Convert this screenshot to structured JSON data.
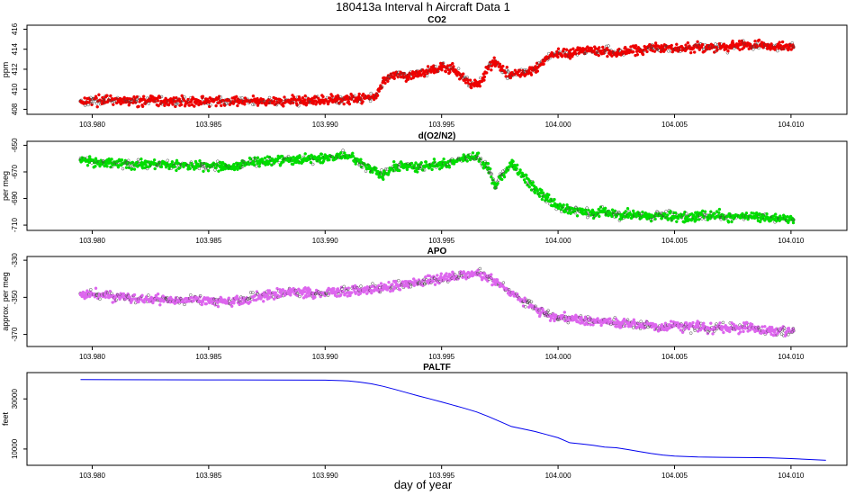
{
  "title": "180413a   Interval h Aircraft Data 1",
  "xlabel": "day of year",
  "chart_data": [
    {
      "type": "scatter",
      "title": "CO2",
      "ylabel": "ppm",
      "color": "#ee0000",
      "xlim": [
        103.9772,
        104.0124
      ],
      "ylim": [
        407.5,
        416.4
      ],
      "xticks": [
        "103.980",
        "103.985",
        "103.990",
        "103.995",
        "104.000",
        "104.005",
        "104.010"
      ],
      "yticks": [
        "408",
        "410",
        "412",
        "414",
        "416"
      ],
      "x": [
        103.9795,
        103.9805,
        103.9815,
        103.9825,
        103.9835,
        103.9845,
        103.9855,
        103.9865,
        103.9875,
        103.9885,
        103.9895,
        103.9905,
        103.9915,
        103.9922,
        103.9925,
        103.993,
        103.9935,
        103.994,
        103.9945,
        103.995,
        103.9955,
        103.996,
        103.9963,
        103.9966,
        103.997,
        103.9973,
        103.9976,
        103.998,
        103.9985,
        103.999,
        103.9995,
        104.0,
        104.0005,
        104.001,
        104.0015,
        104.002,
        104.0025,
        104.003,
        104.0035,
        104.004,
        104.0045,
        104.005,
        104.0055,
        104.006,
        104.0065,
        104.007,
        104.0075,
        104.008,
        104.0085,
        104.009,
        104.0095,
        104.0101
      ],
      "y": [
        408.8,
        408.9,
        408.8,
        408.9,
        408.8,
        408.8,
        408.8,
        408.8,
        408.8,
        408.8,
        408.8,
        409.0,
        409.1,
        409.4,
        410.8,
        411.6,
        411.3,
        411.6,
        411.9,
        412.2,
        412.0,
        411.0,
        410.5,
        410.6,
        412.2,
        412.8,
        411.9,
        411.4,
        411.6,
        412.0,
        413.2,
        413.6,
        413.6,
        413.8,
        413.8,
        413.9,
        413.6,
        413.9,
        414.0,
        414.1,
        414.2,
        414.0,
        414.1,
        414.2,
        414.1,
        414.2,
        414.3,
        414.4,
        414.4,
        414.4,
        414.2,
        414.2
      ]
    },
    {
      "type": "scatter",
      "title": "d(O2/N2)",
      "ylabel": "per meg",
      "color": "#00dd00",
      "xlim": [
        103.9772,
        104.0124
      ],
      "ylim": [
        -714,
        -647
      ],
      "xticks": [
        "103.980",
        "103.985",
        "103.990",
        "103.995",
        "104.000",
        "104.005",
        "104.010"
      ],
      "yticks": [
        "-650",
        "-670",
        "-690",
        "-710"
      ],
      "x": [
        103.9795,
        103.9805,
        103.9815,
        103.9825,
        103.9835,
        103.9845,
        103.9855,
        103.986,
        103.9865,
        103.9875,
        103.9885,
        103.9895,
        103.9905,
        103.991,
        103.9915,
        103.992,
        103.9925,
        103.993,
        103.9935,
        103.994,
        103.9945,
        103.995,
        103.9955,
        103.996,
        103.9965,
        103.997,
        103.9973,
        103.9976,
        103.998,
        103.9985,
        103.999,
        103.9995,
        104.0,
        104.0005,
        104.001,
        104.0015,
        104.002,
        104.0025,
        104.003,
        104.0035,
        104.004,
        104.0045,
        104.005,
        104.0055,
        104.006,
        104.0065,
        104.007,
        104.0075,
        104.008,
        104.0085,
        104.009,
        104.0095,
        104.0101
      ],
      "y": [
        -661,
        -663,
        -664,
        -664,
        -665,
        -665,
        -666,
        -667,
        -663,
        -662,
        -661,
        -660,
        -659,
        -658,
        -663,
        -668,
        -672,
        -666,
        -665,
        -667,
        -665,
        -665,
        -663,
        -659,
        -658,
        -667,
        -682,
        -672,
        -664,
        -673,
        -683,
        -690,
        -696,
        -698,
        -700,
        -702,
        -700,
        -703,
        -702,
        -703,
        -704,
        -703,
        -704,
        -704,
        -703,
        -704,
        -703,
        -704,
        -703,
        -704,
        -705,
        -705,
        -706
      ]
    },
    {
      "type": "scatter",
      "title": "APO",
      "ylabel": "approx. per meg",
      "color": "#dd66ee",
      "xlim": [
        103.9772,
        104.0124
      ],
      "ylim": [
        -376.5,
        -328
      ],
      "xticks": [
        "103.980",
        "103.985",
        "103.990",
        "103.995",
        "104.000",
        "104.005",
        "104.010"
      ],
      "yticks": [
        "-330",
        "-350",
        "-370"
      ],
      "x": [
        103.9795,
        103.9805,
        103.9815,
        103.9825,
        103.9835,
        103.9845,
        103.9855,
        103.9865,
        103.9875,
        103.9885,
        103.9895,
        103.9905,
        103.9915,
        103.9925,
        103.9935,
        103.9945,
        103.9955,
        103.9965,
        103.997,
        103.9975,
        103.998,
        103.9985,
        103.999,
        103.9995,
        104.0,
        104.0005,
        104.001,
        104.0015,
        104.002,
        104.0025,
        104.003,
        104.0035,
        104.004,
        104.0045,
        104.005,
        104.0055,
        104.006,
        104.0065,
        104.007,
        104.0075,
        104.008,
        104.0085,
        104.009,
        104.0095,
        104.0101
      ],
      "y": [
        -348,
        -349,
        -350,
        -351,
        -352,
        -351,
        -352,
        -351,
        -349,
        -347,
        -348,
        -347,
        -346,
        -345,
        -343,
        -341,
        -339,
        -337,
        -339,
        -343,
        -348,
        -352,
        -356,
        -359,
        -361,
        -361,
        -362,
        -363,
        -362,
        -364,
        -364,
        -365,
        -365,
        -366,
        -365,
        -366,
        -366,
        -367,
        -366,
        -367,
        -366,
        -367,
        -368,
        -368,
        -368
      ]
    },
    {
      "type": "line",
      "title": "PALTF",
      "ylabel": "feet",
      "color": "#0000ee",
      "xlim": [
        103.9772,
        104.0124
      ],
      "ylim": [
        3500,
        40500
      ],
      "xticks": [
        "103.980",
        "103.985",
        "103.990",
        "103.995",
        "104.000",
        "104.005",
        "104.010"
      ],
      "yticks": [
        "10000",
        "30000"
      ],
      "x": [
        103.9795,
        103.985,
        103.99,
        103.991,
        103.9915,
        103.992,
        103.9925,
        103.993,
        103.9935,
        103.994,
        103.9945,
        103.995,
        103.9955,
        103.996,
        103.9965,
        103.997,
        103.9975,
        103.998,
        103.9985,
        103.999,
        103.9995,
        104.0,
        104.0005,
        104.001,
        104.0015,
        104.002,
        104.0025,
        104.003,
        104.0035,
        104.004,
        104.0045,
        104.005,
        104.0055,
        104.006,
        104.007,
        104.008,
        104.009,
        104.01,
        104.0115
      ],
      "y": [
        37700,
        37600,
        37500,
        37200,
        36700,
        36000,
        35000,
        33800,
        32500,
        31200,
        30000,
        28800,
        27500,
        26200,
        24800,
        23000,
        21000,
        19000,
        18000,
        17000,
        15800,
        14500,
        12500,
        12000,
        11500,
        10800,
        10500,
        9800,
        9000,
        8200,
        7600,
        7200,
        7000,
        6800,
        6700,
        6600,
        6500,
        6200,
        5500
      ]
    }
  ]
}
